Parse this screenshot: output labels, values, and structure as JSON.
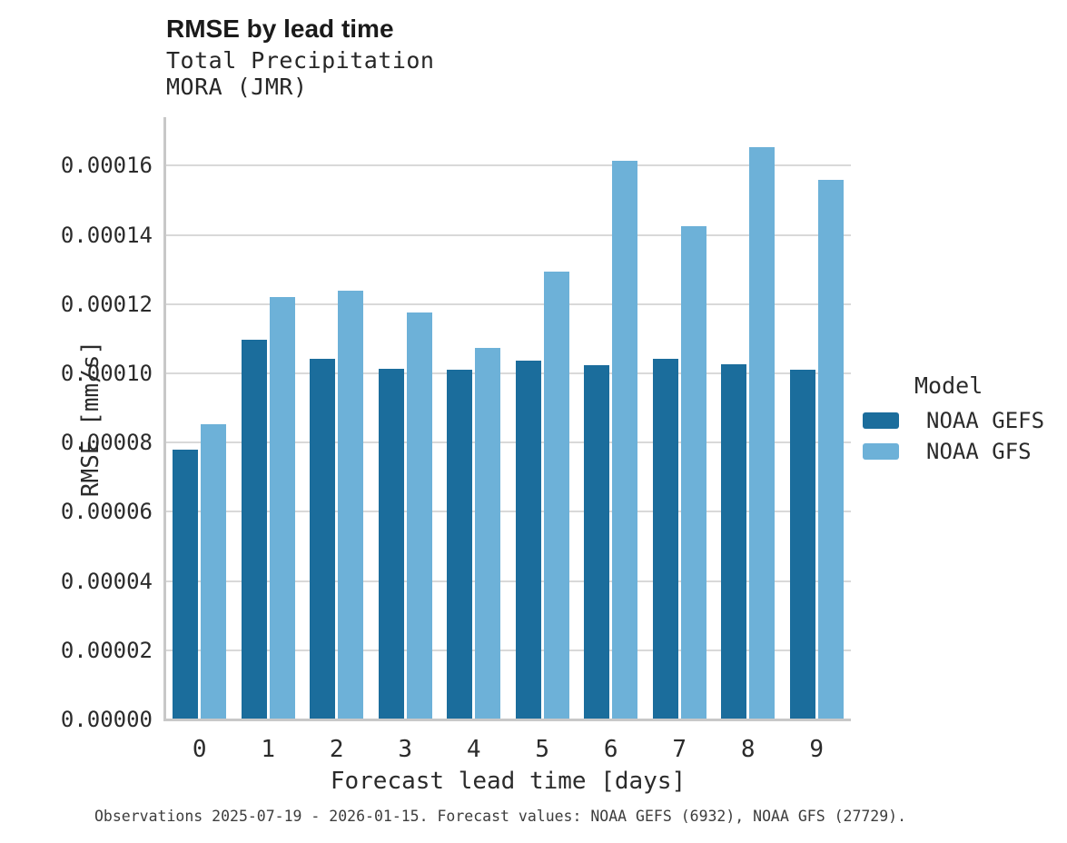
{
  "header": {
    "title": "RMSE by lead time",
    "subtitle_line1": "Total Precipitation",
    "subtitle_line2": "MORA (JMR)"
  },
  "chart_data": {
    "type": "bar",
    "title": "RMSE by lead time",
    "subtitle": [
      "Total Precipitation",
      "MORA (JMR)"
    ],
    "xlabel": "Forecast lead time [days]",
    "ylabel": "RMSE [mm/s]",
    "categories": [
      "0",
      "1",
      "2",
      "3",
      "4",
      "5",
      "6",
      "7",
      "8",
      "9"
    ],
    "series": [
      {
        "name": "NOAA GEFS",
        "color": "#1b6d9c",
        "values": [
          7.8e-05,
          0.0001097,
          0.0001043,
          0.0001014,
          0.000101,
          0.0001037,
          0.0001023,
          0.0001043,
          0.0001027,
          0.000101
        ]
      },
      {
        "name": "NOAA GFS",
        "color": "#6db1d8",
        "values": [
          8.53e-05,
          0.000122,
          0.000124,
          0.0001176,
          0.0001073,
          0.0001293,
          0.0001615,
          0.0001424,
          0.0001654,
          0.0001559
        ]
      }
    ],
    "ylim": [
      0,
      0.000174
    ],
    "ytick_values": [
      0.0,
      2e-05,
      4e-05,
      6e-05,
      8e-05,
      0.0001,
      0.00012,
      0.00014,
      0.00016
    ],
    "ytick_labels": [
      "0.00000",
      "0.00002",
      "0.00004",
      "0.00006",
      "0.00008",
      "0.00010",
      "0.00012",
      "0.00014",
      "0.00016"
    ],
    "grid": "horizontal",
    "legend_position": "right"
  },
  "legend": {
    "title": "Model",
    "entries": [
      {
        "label": "NOAA GEFS",
        "color": "#1b6d9c"
      },
      {
        "label": "NOAA GFS",
        "color": "#6db1d8"
      }
    ]
  },
  "footer": {
    "text": "Observations 2025-07-19 - 2026-01-15. Forecast values: NOAA GEFS (6932), NOAA GFS (27729)."
  },
  "colors": {
    "background": "#ffffff",
    "gridline": "#d9d9d9",
    "spine": "#c8c8c8",
    "title_text": "#1a1a1a",
    "axis_text": "#2b2b2b",
    "footer_text": "#3d3d3d",
    "series_dark": "#1b6d9c",
    "series_light": "#6db1d8"
  }
}
